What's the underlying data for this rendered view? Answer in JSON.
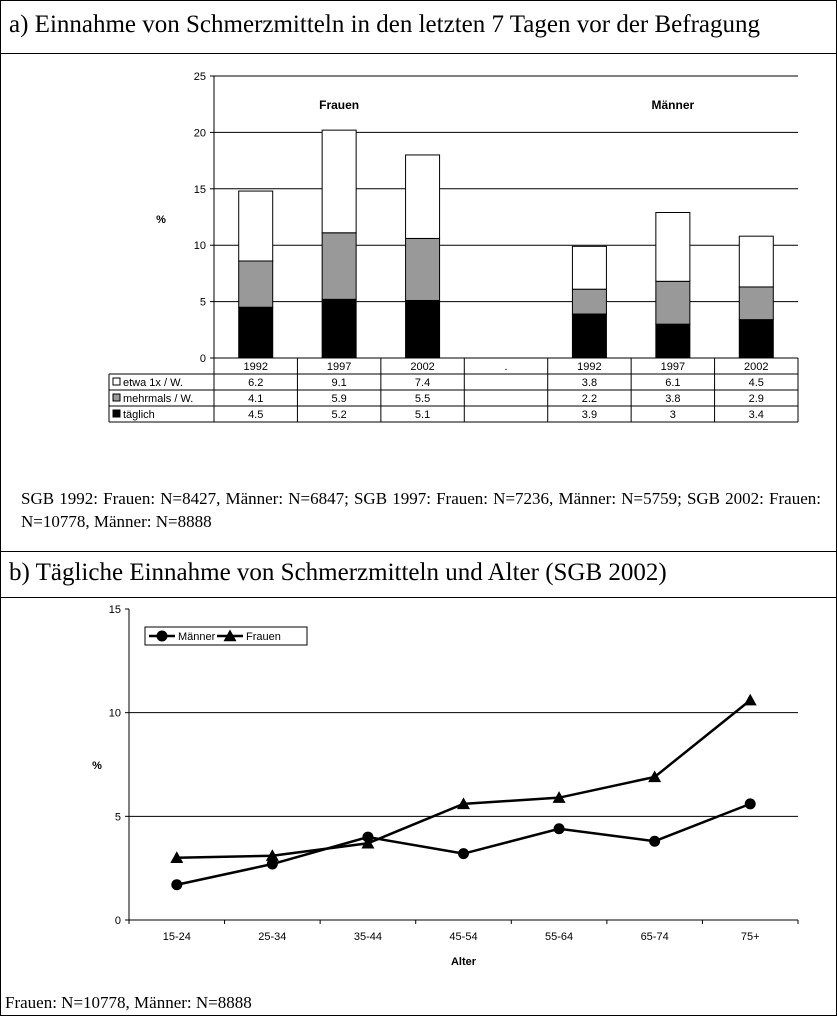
{
  "panel_a": {
    "title": "a) Einnahme von Schmerzmitteln in den letzten 7 Tagen vor der Befragung",
    "note": "SGB 1992: Frauen: N=8427, Männer: N=6847; SGB 1997: Frauen: N=7236, Männer: N=5759; SGB 2002: Frauen: N=10778, Männer: N=8888"
  },
  "panel_b": {
    "title": "b) Tägliche Einnahme von Schmerzmitteln und Alter (SGB 2002)",
    "note": "Frauen: N=10778, Männer: N=8888"
  },
  "colors": {
    "etwa": "#ffffff",
    "mehrmals": "#999999",
    "taeglich": "#000000",
    "line": "#000000"
  },
  "chart_data": [
    {
      "type": "bar",
      "stacked": true,
      "ylabel": "%",
      "ylim": [
        0,
        25
      ],
      "yticks": [
        0,
        5,
        10,
        15,
        20,
        25
      ],
      "grid": true,
      "group_labels": [
        "Frauen",
        "Männer"
      ],
      "categories": [
        "1992",
        "1997",
        "2002",
        ".",
        "1992",
        "1997",
        "2002"
      ],
      "series": [
        {
          "name": "täglich",
          "values": [
            4.5,
            5.2,
            5.1,
            null,
            3.9,
            3,
            3.4
          ],
          "labels": [
            "4.5",
            "5.2",
            "5.1",
            "",
            "3.9",
            "3",
            "3.4"
          ]
        },
        {
          "name": "mehrmals / W.",
          "values": [
            4.1,
            5.9,
            5.5,
            null,
            2.2,
            3.8,
            2.9
          ],
          "labels": [
            "4.1",
            "5.9",
            "5.5",
            "",
            "2.2",
            "3.8",
            "2.9"
          ]
        },
        {
          "name": "etwa 1x / W.",
          "values": [
            6.2,
            9.1,
            7.4,
            null,
            3.8,
            6.1,
            4.5
          ],
          "labels": [
            "6.2",
            "9.1",
            "7.4",
            "",
            "3.8",
            "6.1",
            "4.5"
          ]
        }
      ],
      "table_row_order": [
        "etwa 1x / W.",
        "mehrmals / W.",
        "täglich"
      ]
    },
    {
      "type": "line",
      "xlabel": "Alter",
      "ylabel": "%",
      "ylim": [
        0,
        15
      ],
      "yticks": [
        0,
        5,
        10,
        15
      ],
      "grid": true,
      "legend_position": "top-left",
      "categories": [
        "15-24",
        "25-34",
        "35-44",
        "45-54",
        "55-64",
        "65-74",
        "75+"
      ],
      "series": [
        {
          "name": "Männer",
          "marker": "circle",
          "values": [
            1.7,
            2.7,
            4.0,
            3.2,
            4.4,
            3.8,
            5.6
          ]
        },
        {
          "name": "Frauen",
          "marker": "triangle",
          "values": [
            3.0,
            3.1,
            3.7,
            5.6,
            5.9,
            6.9,
            10.6
          ]
        }
      ]
    }
  ]
}
